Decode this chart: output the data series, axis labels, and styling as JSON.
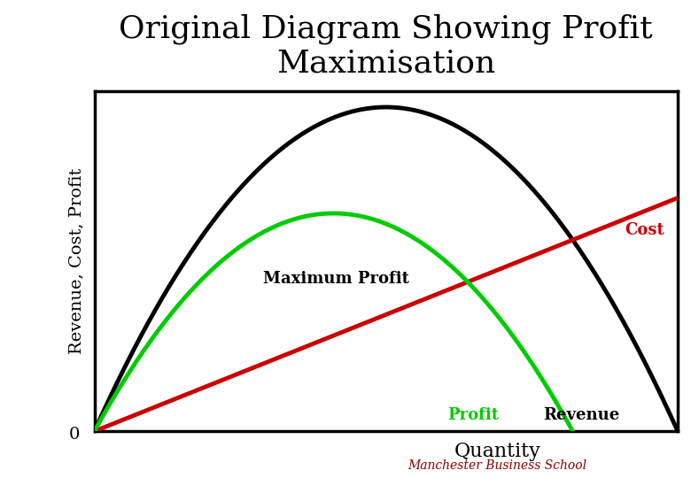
{
  "title": "Original Diagram Showing Profit\nMaximisation",
  "title_fontsize": 26,
  "ylabel": "Revenue, Cost, Profit",
  "xlabel": "Quantity",
  "ylabel_fontsize": 14,
  "xlabel_fontsize": 16,
  "bg_color": "#ffffff",
  "spine_color": "#000000",
  "spine_linewidth": 2.5,
  "revenue_color": "#000000",
  "cost_color": "#cc0000",
  "profit_color": "#00cc00",
  "revenue_linewidth": 3.5,
  "cost_linewidth": 3.5,
  "profit_linewidth": 3.5,
  "annotation_fontsize": 13,
  "watermark_color": "#8B0000",
  "watermark_text": "Manchester Business School",
  "watermark_fontsize": 10
}
